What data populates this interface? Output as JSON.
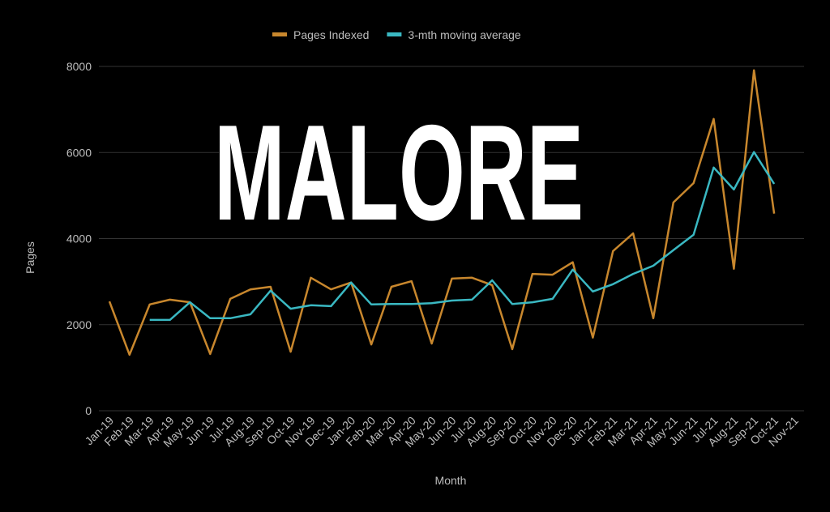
{
  "chart_data": {
    "type": "line",
    "annotation": "MALORE",
    "x_label": "Month",
    "y_label": "Pages",
    "categories": [
      "Jan-19",
      "Feb-19",
      "Mar-19",
      "Apr-19",
      "May-19",
      "Jun-19",
      "Jul-19",
      "Aug-19",
      "Sep-19",
      "Oct-19",
      "Nov-19",
      "Dec-19",
      "Jan-20",
      "Feb-20",
      "Mar-20",
      "Apr-20",
      "May-20",
      "Jun-20",
      "Jul-20",
      "Aug-20",
      "Sep-20",
      "Oct-20",
      "Nov-20",
      "Dec-20",
      "Jan-21",
      "Feb-21",
      "Mar-21",
      "Apr-21",
      "May-21",
      "Jun-21",
      "Jul-21",
      "Aug-21",
      "Sep-21",
      "Oct-21",
      "Nov-21"
    ],
    "series": [
      {
        "name": "Pages Indexed",
        "color": "#c8872d",
        "values": [
          2540,
          1300,
          2470,
          2580,
          2520,
          1320,
          2600,
          2820,
          2880,
          1370,
          3090,
          2820,
          2980,
          1540,
          2880,
          3010,
          1560,
          3070,
          3090,
          2920,
          1430,
          3180,
          3160,
          3450,
          1700,
          3710,
          4120,
          2150,
          4840,
          5290,
          6780,
          3300,
          7910,
          4580,
          null
        ]
      },
      {
        "name": "3-mth moving average",
        "color": "#3ab8c2",
        "values": [
          null,
          null,
          2110,
          2110,
          2520,
          2150,
          2150,
          2240,
          2790,
          2370,
          2450,
          2430,
          2980,
          2470,
          2480,
          2480,
          2500,
          2560,
          2580,
          3030,
          2480,
          2520,
          2600,
          3280,
          2770,
          2940,
          3180,
          3370,
          3730,
          4090,
          5650,
          5140,
          6010,
          5270,
          null
        ]
      }
    ],
    "ylim": [
      0,
      8000
    ],
    "yticks": [
      0,
      2000,
      4000,
      6000,
      8000
    ],
    "grid": true,
    "legend": "top"
  }
}
